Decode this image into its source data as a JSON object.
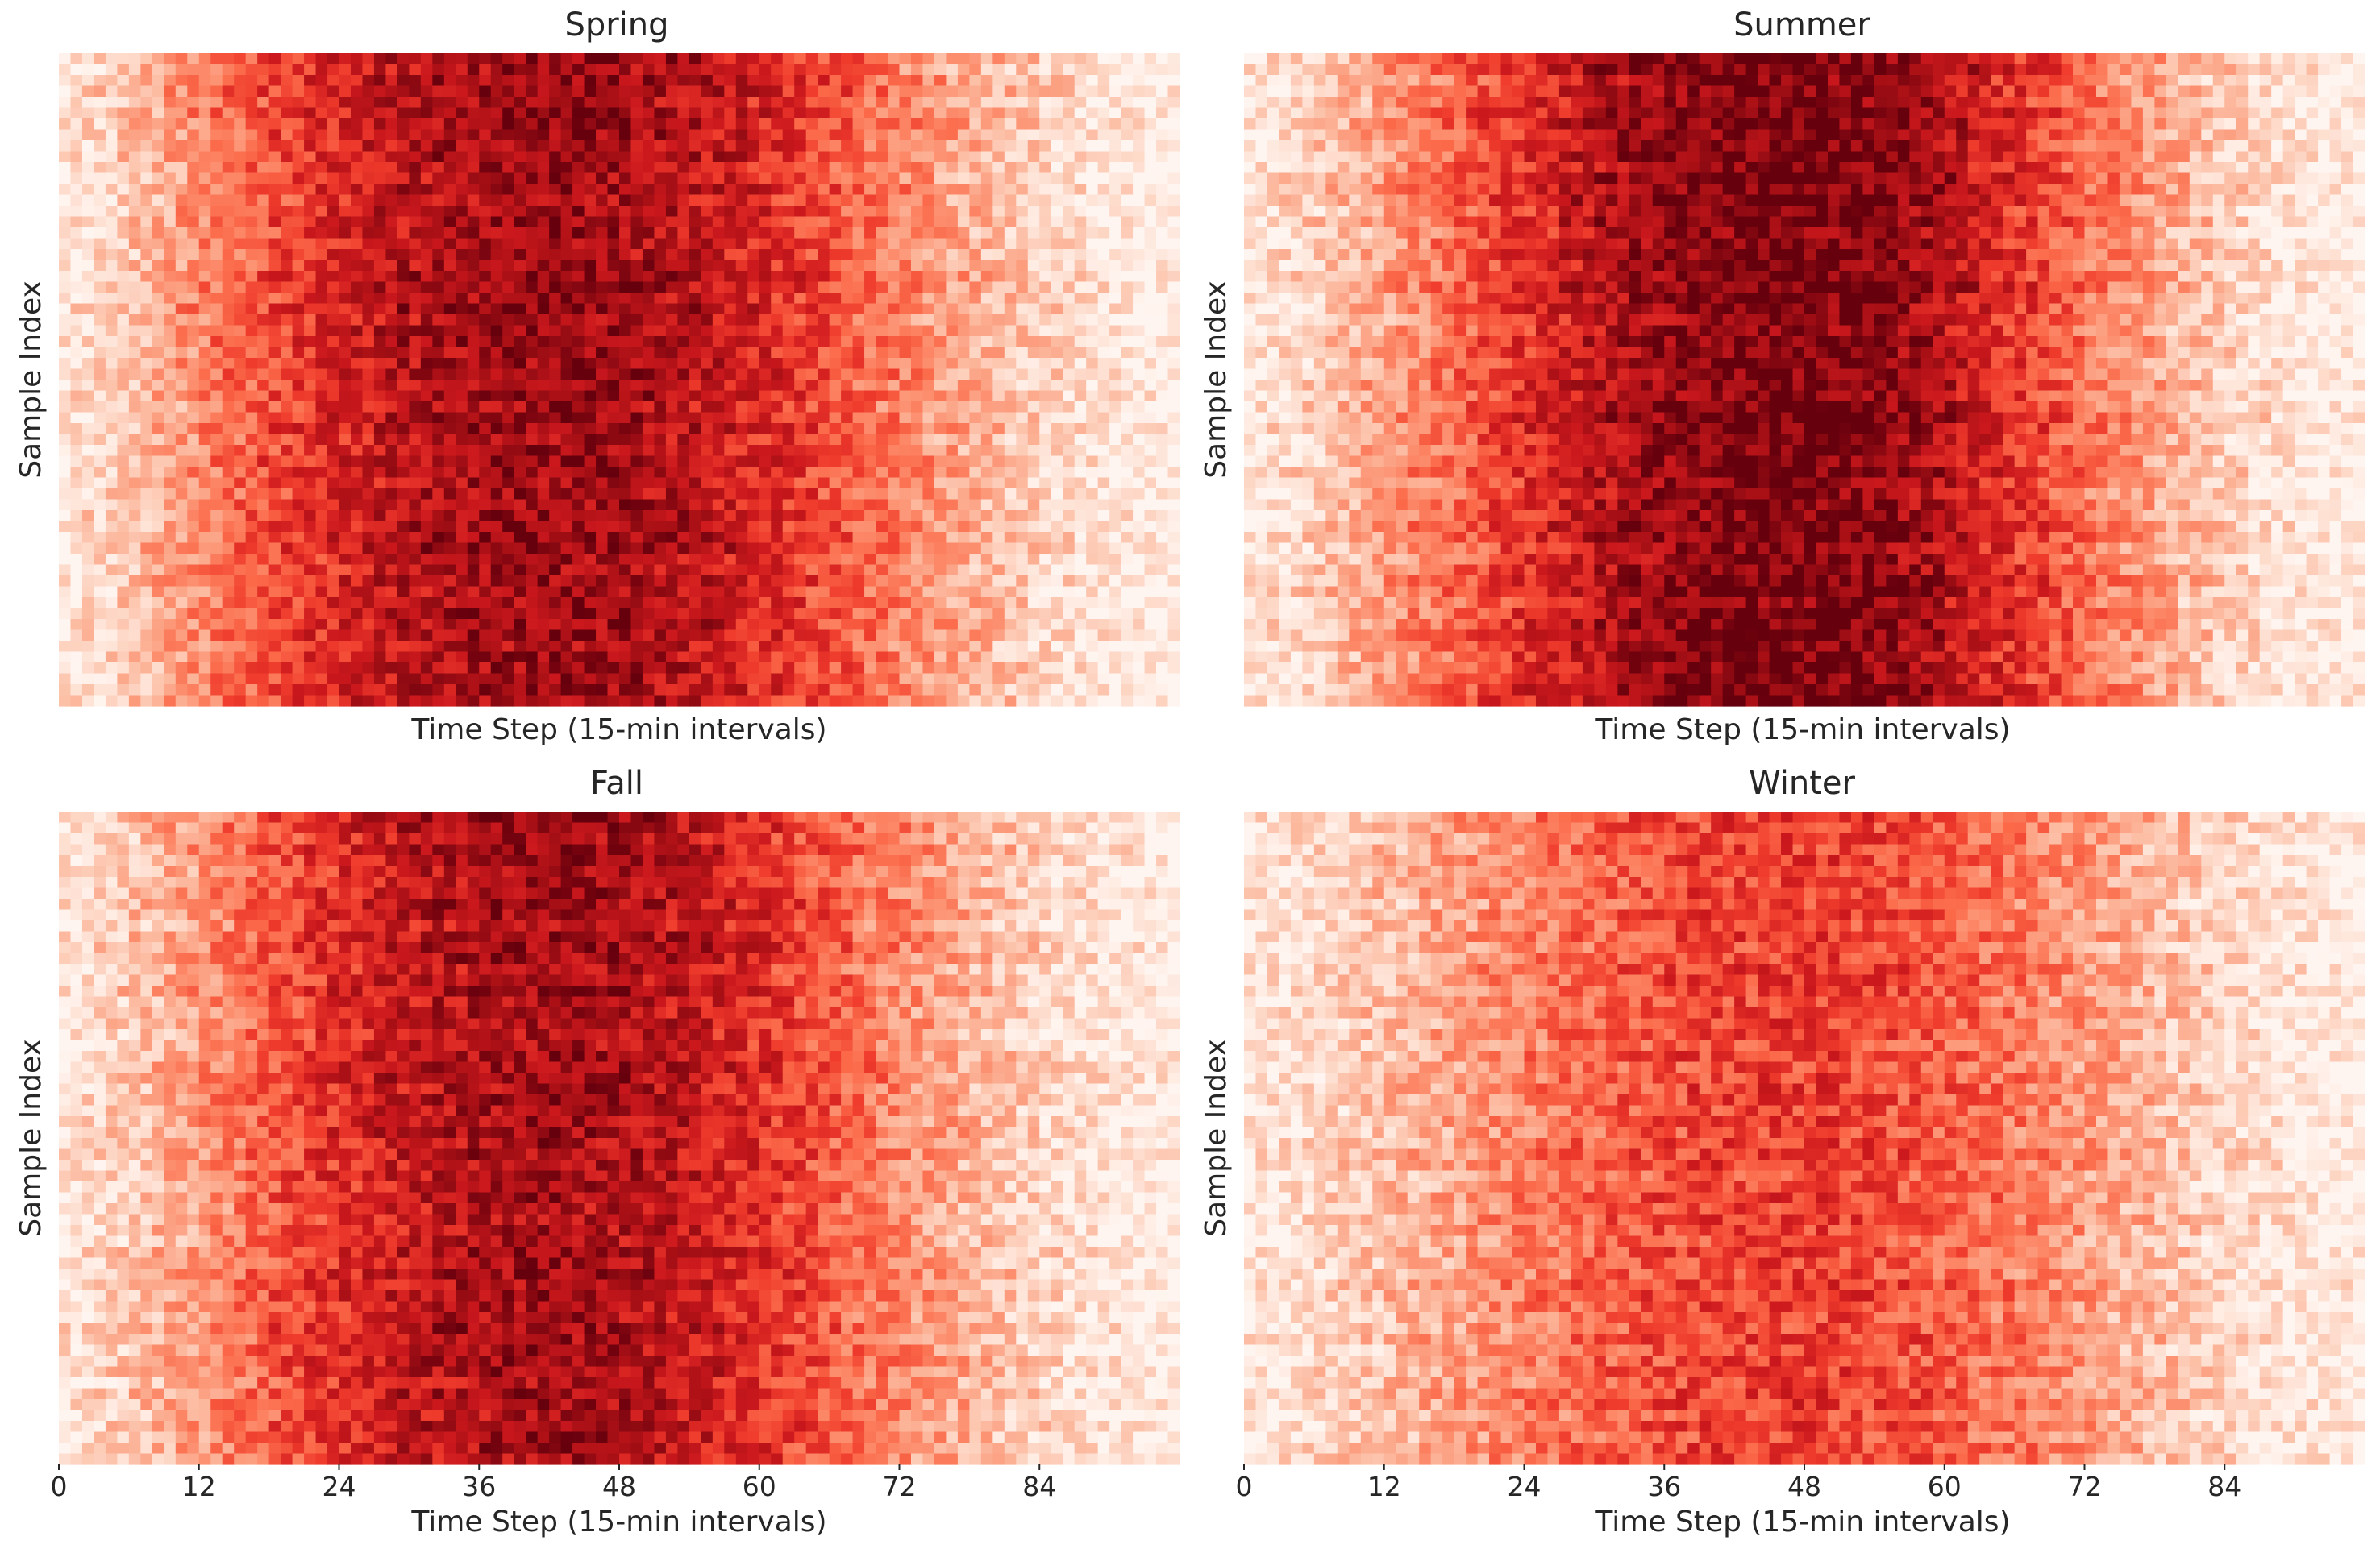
{
  "chart_data": [
    {
      "type": "heatmap",
      "title": "Spring",
      "xlabel": "Time Step (15-min intervals)",
      "ylabel": "Sample Index",
      "x_ticks": [],
      "x_range": [
        0,
        96
      ],
      "colormap": "Reds",
      "grid": false,
      "legend": "none",
      "profile_description": "Intensity per time step (0 = white, 1 = dark red); noisy per sample",
      "profile": {
        "x": [
          0,
          6,
          12,
          18,
          24,
          30,
          36,
          42,
          48,
          54,
          60,
          66,
          72,
          78,
          84,
          90,
          95
        ],
        "intensity": [
          0.08,
          0.22,
          0.42,
          0.58,
          0.72,
          0.82,
          0.87,
          0.89,
          0.87,
          0.82,
          0.72,
          0.58,
          0.44,
          0.3,
          0.18,
          0.08,
          0.04
        ]
      }
    },
    {
      "type": "heatmap",
      "title": "Summer",
      "xlabel": "Time Step (15-min intervals)",
      "ylabel": "Sample Index",
      "x_ticks": [],
      "x_range": [
        0,
        96
      ],
      "colormap": "Reds",
      "grid": false,
      "legend": "none",
      "profile_description": "Intensity per time step (0 = white, 1 = dark red); noisy per sample",
      "profile": {
        "x": [
          0,
          6,
          12,
          18,
          24,
          30,
          36,
          42,
          48,
          54,
          60,
          66,
          72,
          78,
          84,
          90,
          95
        ],
        "intensity": [
          0.06,
          0.18,
          0.34,
          0.5,
          0.66,
          0.8,
          0.9,
          0.96,
          0.97,
          0.93,
          0.82,
          0.66,
          0.48,
          0.32,
          0.18,
          0.08,
          0.04
        ]
      }
    },
    {
      "type": "heatmap",
      "title": "Fall",
      "xlabel": "Time Step (15-min intervals)",
      "ylabel": "Sample Index",
      "x_ticks": [
        0,
        12,
        24,
        36,
        48,
        60,
        72,
        84
      ],
      "x_range": [
        0,
        96
      ],
      "colormap": "Reds",
      "grid": false,
      "legend": "none",
      "profile_description": "Intensity per time step (0 = white, 1 = dark red); noisy per sample",
      "profile": {
        "x": [
          0,
          6,
          12,
          18,
          24,
          30,
          36,
          42,
          48,
          54,
          60,
          66,
          72,
          78,
          84,
          90,
          95
        ],
        "intensity": [
          0.08,
          0.2,
          0.36,
          0.54,
          0.68,
          0.78,
          0.84,
          0.86,
          0.84,
          0.78,
          0.68,
          0.54,
          0.4,
          0.28,
          0.16,
          0.08,
          0.04
        ]
      }
    },
    {
      "type": "heatmap",
      "title": "Winter",
      "xlabel": "Time Step (15-min intervals)",
      "ylabel": "Sample Index",
      "x_ticks": [
        0,
        12,
        24,
        36,
        48,
        60,
        72,
        84
      ],
      "x_range": [
        0,
        96
      ],
      "colormap": "Reds",
      "grid": false,
      "legend": "none",
      "profile_description": "Intensity per time step (0 = white, 1 = dark red); noisy per sample",
      "profile": {
        "x": [
          0,
          6,
          12,
          18,
          24,
          30,
          36,
          42,
          48,
          54,
          60,
          66,
          72,
          78,
          84,
          90,
          95
        ],
        "intensity": [
          0.05,
          0.12,
          0.22,
          0.32,
          0.42,
          0.5,
          0.56,
          0.6,
          0.61,
          0.58,
          0.52,
          0.44,
          0.34,
          0.24,
          0.14,
          0.07,
          0.03
        ]
      }
    }
  ]
}
